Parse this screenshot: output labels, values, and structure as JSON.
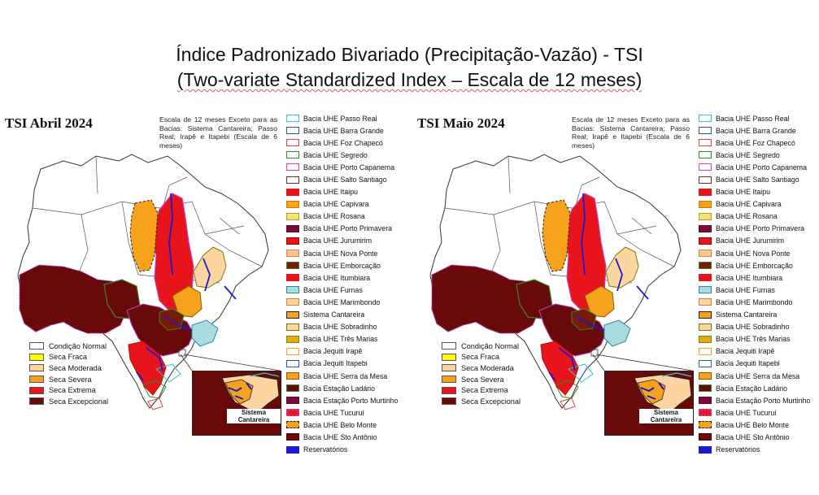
{
  "title": {
    "line1": "Índice Padronizado Bivariado (Precipitação-Vazão) - TSI",
    "line2": "(Two-variate Standardized Index – Escala de 12 meses)"
  },
  "note": "Escala de 12 meses Exceto para as Bacias: Sistema Cantareira; Passo Real; Irapê e Itapebi (Escala de 6 meses)",
  "inset_label": "Sistema Cantareira",
  "panels": [
    {
      "title": "TSI Abril 2024"
    },
    {
      "title": "TSI Maio 2024"
    }
  ],
  "condition_legend": [
    {
      "label": "Condição Normal",
      "color": "#ffffff"
    },
    {
      "label": "Seca Fraca",
      "color": "#ffff00"
    },
    {
      "label": "Seca Moderada",
      "color": "#fcd5a0"
    },
    {
      "label": "Seca Severa",
      "color": "#f7a21b"
    },
    {
      "label": "Seca Extrema",
      "color": "#e8141c"
    },
    {
      "label": "Seca Excepcional",
      "color": "#6a0909"
    }
  ],
  "basin_legend": [
    {
      "label": "Bacia UHE Passo Real",
      "fill": "#ffffff",
      "stroke": "#2ec4c4",
      "style": "solid"
    },
    {
      "label": "Bacia UHE Barra Grande",
      "fill": "#ffffff",
      "stroke": "#2d5f6b",
      "style": "solid"
    },
    {
      "label": "Bacia UHE Foz Chapecó",
      "fill": "#ffffff",
      "stroke": "#e04040",
      "style": "solid"
    },
    {
      "label": "Bacia UHE Segredo",
      "fill": "#ffffff",
      "stroke": "#2e8b2e",
      "style": "solid"
    },
    {
      "label": "Bacia UHE Porto Capanema",
      "fill": "#ffffff",
      "stroke": "#e040b0",
      "style": "solid"
    },
    {
      "label": "Bacia UHE Salto Santiago",
      "fill": "#ffffff",
      "stroke": "#7a2a2a",
      "style": "solid"
    },
    {
      "label": "Bacia UHE Itaipu",
      "fill": "#e8141c",
      "stroke": "#e8141c",
      "style": "jagged"
    },
    {
      "label": "Bacia UHE Capivara",
      "fill": "#f7a21b",
      "stroke": "#c77a00",
      "style": "solid"
    },
    {
      "label": "Bacia UHE Rosana",
      "fill": "#f0e080",
      "stroke": "#b8a000",
      "style": "solid"
    },
    {
      "label": "Bacia UHE Porto Primavera",
      "fill": "#7a0c3c",
      "stroke": "#5a0a2a",
      "style": "solid"
    },
    {
      "label": "Bacia UHE Jurumirim",
      "fill": "#e8141c",
      "stroke": "#a00000",
      "style": "solid"
    },
    {
      "label": "Bacia UHE Nova Ponte",
      "fill": "#fcc890",
      "stroke": "#d08040",
      "style": "solid"
    },
    {
      "label": "Bacia UHE Emborcação",
      "fill": "#7a1a00",
      "stroke": "#2e8b2e",
      "style": "solid"
    },
    {
      "label": "Bacia UHE Itumbiara",
      "fill": "#e8141c",
      "stroke": "#e8141c",
      "style": "solid"
    },
    {
      "label": "Bacia UHE Furnas",
      "fill": "#a8dce0",
      "stroke": "#2a8aa0",
      "style": "solid"
    },
    {
      "label": "Bacia UHE Marimbondo",
      "fill": "#fcd5a0",
      "stroke": "#d08040",
      "style": "solid"
    },
    {
      "label": "Sistema Cantareira",
      "fill": "#f7a21b",
      "stroke": "#222222",
      "style": "solid"
    },
    {
      "label": "Bacia UHE Sobradinho",
      "fill": "#fcd5a0",
      "stroke": "#7a7a00",
      "style": "solid"
    },
    {
      "label": "Bacia UHE Três Marias",
      "fill": "#f7a21b",
      "stroke": "#4a9a00",
      "style": "solid"
    },
    {
      "label": "Bacia Jequiti Irapê",
      "fill": "#ffffff",
      "stroke": "#f7a21b",
      "style": "solid"
    },
    {
      "label": "Bacia Jequiti Itapebi",
      "fill": "#ffffff",
      "stroke": "#2a5fa0",
      "style": "solid"
    },
    {
      "label": "Bacia UHE Serra da Mesa",
      "fill": "#f7a21b",
      "stroke": "#8a5a00",
      "style": "solid"
    },
    {
      "label": "Bacia Estação Ladário",
      "fill": "#6a0909",
      "stroke": "#2e8b2e",
      "style": "solid"
    },
    {
      "label": "Bacia Estação Porto Murtinho",
      "fill": "#7a0c3c",
      "stroke": "#5a0a2a",
      "style": "solid"
    },
    {
      "label": "Bacia UHE Tucuruí",
      "fill": "#e8141c",
      "stroke": "#c040c0",
      "style": "jagged"
    },
    {
      "label": "Bacia UHE Belo Monte",
      "fill": "#f7a21b",
      "stroke": "#222222",
      "style": "dashed"
    },
    {
      "label": "Bacia UHE Sto Antônio",
      "fill": "#6a0909",
      "stroke": "#4a0000",
      "style": "solid"
    },
    {
      "label": "Reservatórios",
      "fill": "#1a1ad0",
      "stroke": "#1a1ad0",
      "style": "solid"
    }
  ]
}
